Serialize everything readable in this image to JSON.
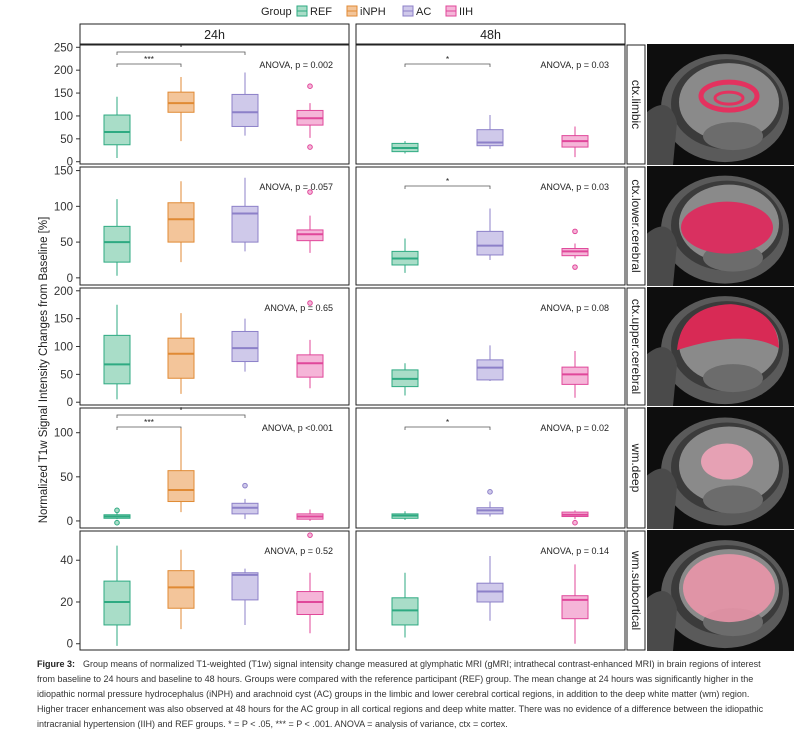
{
  "legend": {
    "title": "Group",
    "items": [
      {
        "name": "REF",
        "color": "#2eaa82",
        "fill": "#a9ddc8"
      },
      {
        "name": "iNPH",
        "color": "#e08a34",
        "fill": "#f3c59a"
      },
      {
        "name": "AC",
        "color": "#8c80c8",
        "fill": "#cfc9ea"
      },
      {
        "name": "IIH",
        "color": "#e0479a",
        "fill": "#f5b5d8"
      }
    ]
  },
  "columns": [
    "24h",
    "48h"
  ],
  "y_axis_label": "Normalized T1w Signal Intensity Changes from Baseline [%]",
  "caption": {
    "lead": "Figure 3:",
    "text": "Group means of normalized T1-weighted (T1w) signal intensity change measured at glymphatic MRI (gMRI; intrathecal contrast-enhanced MRI) in brain regions of interest from baseline to 24 hours and baseline to 48 hours. Groups were compared with the reference participant (REF) group. The mean change at 24 hours was significantly higher in the idiopathic normal pressure hydrocephalus (iNPH) and arachnoid cyst (AC) groups in the limbic and lower cerebral cortical regions, in addition to the deep white matter (wm) region. Higher tracer enhancement was also observed at 48 hours for the AC group in all cortical regions and deep white matter. There was no evidence of a difference between the idiopathic intracranial hypertension (IIH) and REF groups. * = P < .05, *** = P < .001. ANOVA = analysis of variance, ctx = cortex."
  },
  "chart_data": [
    {
      "type": "box",
      "region": "ctx.limbic",
      "yticks": [
        0,
        50,
        100,
        150,
        200,
        250
      ],
      "ylim": [
        -5,
        255
      ],
      "panels": [
        {
          "time": "24h",
          "anova": "ANOVA, p = 0.002",
          "brackets": [
            {
              "label": "***",
              "from": "REF",
              "to": "iNPH"
            },
            {
              "label": "*",
              "from": "REF",
              "to": "AC"
            }
          ],
          "boxes": [
            {
              "group": "REF",
              "min": 8,
              "q1": 37,
              "median": 65,
              "q3": 102,
              "max": 142,
              "outliers": []
            },
            {
              "group": "iNPH",
              "min": 45,
              "q1": 108,
              "median": 128,
              "q3": 152,
              "max": 185,
              "outliers": []
            },
            {
              "group": "AC",
              "min": 57,
              "q1": 77,
              "median": 108,
              "q3": 147,
              "max": 195,
              "outliers": []
            },
            {
              "group": "IIH",
              "min": 52,
              "q1": 80,
              "median": 95,
              "q3": 112,
              "max": 128,
              "outliers": [
                32,
                165
              ]
            }
          ]
        },
        {
          "time": "48h",
          "anova": "ANOVA, p = 0.03",
          "brackets": [
            {
              "label": "*",
              "from": "REF",
              "to": "AC"
            }
          ],
          "boxes": [
            {
              "group": "REF",
              "min": 18,
              "q1": 22,
              "median": 30,
              "q3": 40,
              "max": 45,
              "outliers": []
            },
            {
              "group": "AC",
              "min": 28,
              "q1": 35,
              "median": 42,
              "q3": 70,
              "max": 102,
              "outliers": []
            },
            {
              "group": "IIH",
              "min": 10,
              "q1": 32,
              "median": 45,
              "q3": 57,
              "max": 77,
              "outliers": []
            }
          ]
        }
      ]
    },
    {
      "type": "box",
      "region": "ctx.lower.cerebral",
      "yticks": [
        0,
        50,
        100,
        150
      ],
      "ylim": [
        -10,
        155
      ],
      "panels": [
        {
          "time": "24h",
          "anova": "ANOVA, p = 0.057",
          "brackets": [],
          "boxes": [
            {
              "group": "REF",
              "min": 3,
              "q1": 22,
              "median": 50,
              "q3": 72,
              "max": 110,
              "outliers": []
            },
            {
              "group": "iNPH",
              "min": 22,
              "q1": 50,
              "median": 82,
              "q3": 105,
              "max": 135,
              "outliers": []
            },
            {
              "group": "AC",
              "min": 37,
              "q1": 50,
              "median": 90,
              "q3": 100,
              "max": 140,
              "outliers": []
            },
            {
              "group": "IIH",
              "min": 35,
              "q1": 52,
              "median": 61,
              "q3": 67,
              "max": 87,
              "outliers": [
                120
              ]
            }
          ]
        },
        {
          "time": "48h",
          "anova": "ANOVA, p = 0.03",
          "brackets": [
            {
              "label": "*",
              "from": "REF",
              "to": "AC"
            }
          ],
          "boxes": [
            {
              "group": "REF",
              "min": 7,
              "q1": 18,
              "median": 27,
              "q3": 37,
              "max": 55,
              "outliers": []
            },
            {
              "group": "AC",
              "min": 25,
              "q1": 32,
              "median": 45,
              "q3": 65,
              "max": 97,
              "outliers": []
            },
            {
              "group": "IIH",
              "min": 27,
              "q1": 31,
              "median": 37,
              "q3": 41,
              "max": 48,
              "outliers": [
                15,
                65
              ]
            }
          ]
        }
      ]
    },
    {
      "type": "box",
      "region": "ctx.upper.cerebral",
      "yticks": [
        0,
        50,
        100,
        150,
        200
      ],
      "ylim": [
        -5,
        205
      ],
      "panels": [
        {
          "time": "24h",
          "anova": "ANOVA, p = 0.65",
          "brackets": [],
          "boxes": [
            {
              "group": "REF",
              "min": 5,
              "q1": 33,
              "median": 68,
              "q3": 120,
              "max": 175,
              "outliers": []
            },
            {
              "group": "iNPH",
              "min": 15,
              "q1": 43,
              "median": 87,
              "q3": 115,
              "max": 160,
              "outliers": []
            },
            {
              "group": "AC",
              "min": 55,
              "q1": 73,
              "median": 97,
              "q3": 127,
              "max": 150,
              "outliers": []
            },
            {
              "group": "IIH",
              "min": 25,
              "q1": 45,
              "median": 70,
              "q3": 85,
              "max": 112,
              "outliers": [
                178
              ]
            }
          ]
        },
        {
          "time": "48h",
          "anova": "ANOVA, p = 0.08",
          "brackets": [],
          "boxes": [
            {
              "group": "REF",
              "min": 12,
              "q1": 28,
              "median": 42,
              "q3": 58,
              "max": 70,
              "outliers": []
            },
            {
              "group": "AC",
              "min": 38,
              "q1": 40,
              "median": 62,
              "q3": 76,
              "max": 102,
              "outliers": []
            },
            {
              "group": "IIH",
              "min": 8,
              "q1": 32,
              "median": 50,
              "q3": 63,
              "max": 92,
              "outliers": []
            }
          ]
        }
      ]
    },
    {
      "type": "box",
      "region": "wm.deep",
      "yticks": [
        0,
        50,
        100
      ],
      "ylim": [
        -8,
        128
      ],
      "panels": [
        {
          "time": "24h",
          "anova": "ANOVA, p <0.001",
          "brackets": [
            {
              "label": "***",
              "from": "REF",
              "to": "iNPH"
            },
            {
              "label": "*",
              "from": "REF",
              "to": "AC"
            }
          ],
          "boxes": [
            {
              "group": "REF",
              "min": 2,
              "q1": 3,
              "median": 5,
              "q3": 7,
              "max": 9,
              "outliers": [
                -2,
                12
              ]
            },
            {
              "group": "iNPH",
              "min": 10,
              "q1": 22,
              "median": 35,
              "q3": 57,
              "max": 105,
              "outliers": []
            },
            {
              "group": "AC",
              "min": 2,
              "q1": 8,
              "median": 15,
              "q3": 20,
              "max": 25,
              "outliers": [
                40
              ]
            },
            {
              "group": "IIH",
              "min": 0,
              "q1": 2,
              "median": 5,
              "q3": 8,
              "max": 13,
              "outliers": []
            }
          ]
        },
        {
          "time": "48h",
          "anova": "ANOVA, p = 0.02",
          "brackets": [
            {
              "label": "*",
              "from": "REF",
              "to": "AC"
            }
          ],
          "boxes": [
            {
              "group": "REF",
              "min": 1,
              "q1": 3,
              "median": 6,
              "q3": 8,
              "max": 11,
              "outliers": []
            },
            {
              "group": "AC",
              "min": 5,
              "q1": 8,
              "median": 12,
              "q3": 15,
              "max": 22,
              "outliers": [
                33
              ]
            },
            {
              "group": "IIH",
              "min": 2,
              "q1": 5,
              "median": 7,
              "q3": 10,
              "max": 12,
              "outliers": [
                -2
              ]
            }
          ]
        }
      ]
    },
    {
      "type": "box",
      "region": "wm.subcortical",
      "yticks": [
        0,
        20,
        40
      ],
      "ylim": [
        -3,
        54
      ],
      "panels": [
        {
          "time": "24h",
          "anova": "ANOVA, p = 0.52",
          "brackets": [],
          "boxes": [
            {
              "group": "REF",
              "min": -1,
              "q1": 9,
              "median": 20,
              "q3": 30,
              "max": 47,
              "outliers": []
            },
            {
              "group": "iNPH",
              "min": 7,
              "q1": 17,
              "median": 27,
              "q3": 35,
              "max": 45,
              "outliers": []
            },
            {
              "group": "AC",
              "min": 9,
              "q1": 21,
              "median": 33,
              "q3": 34,
              "max": 36,
              "outliers": []
            },
            {
              "group": "IIH",
              "min": 5,
              "q1": 14,
              "median": 20,
              "q3": 25,
              "max": 34,
              "outliers": [
                52
              ]
            }
          ]
        },
        {
          "time": "48h",
          "anova": "ANOVA, p = 0.14",
          "brackets": [],
          "boxes": [
            {
              "group": "REF",
              "min": 3,
              "q1": 9,
              "median": 16,
              "q3": 22,
              "max": 34,
              "outliers": []
            },
            {
              "group": "AC",
              "min": 11,
              "q1": 20,
              "median": 25,
              "q3": 29,
              "max": 42,
              "outliers": []
            },
            {
              "group": "IIH",
              "min": 0,
              "q1": 12,
              "median": 21,
              "q3": 23,
              "max": 38,
              "outliers": []
            }
          ]
        }
      ]
    }
  ]
}
